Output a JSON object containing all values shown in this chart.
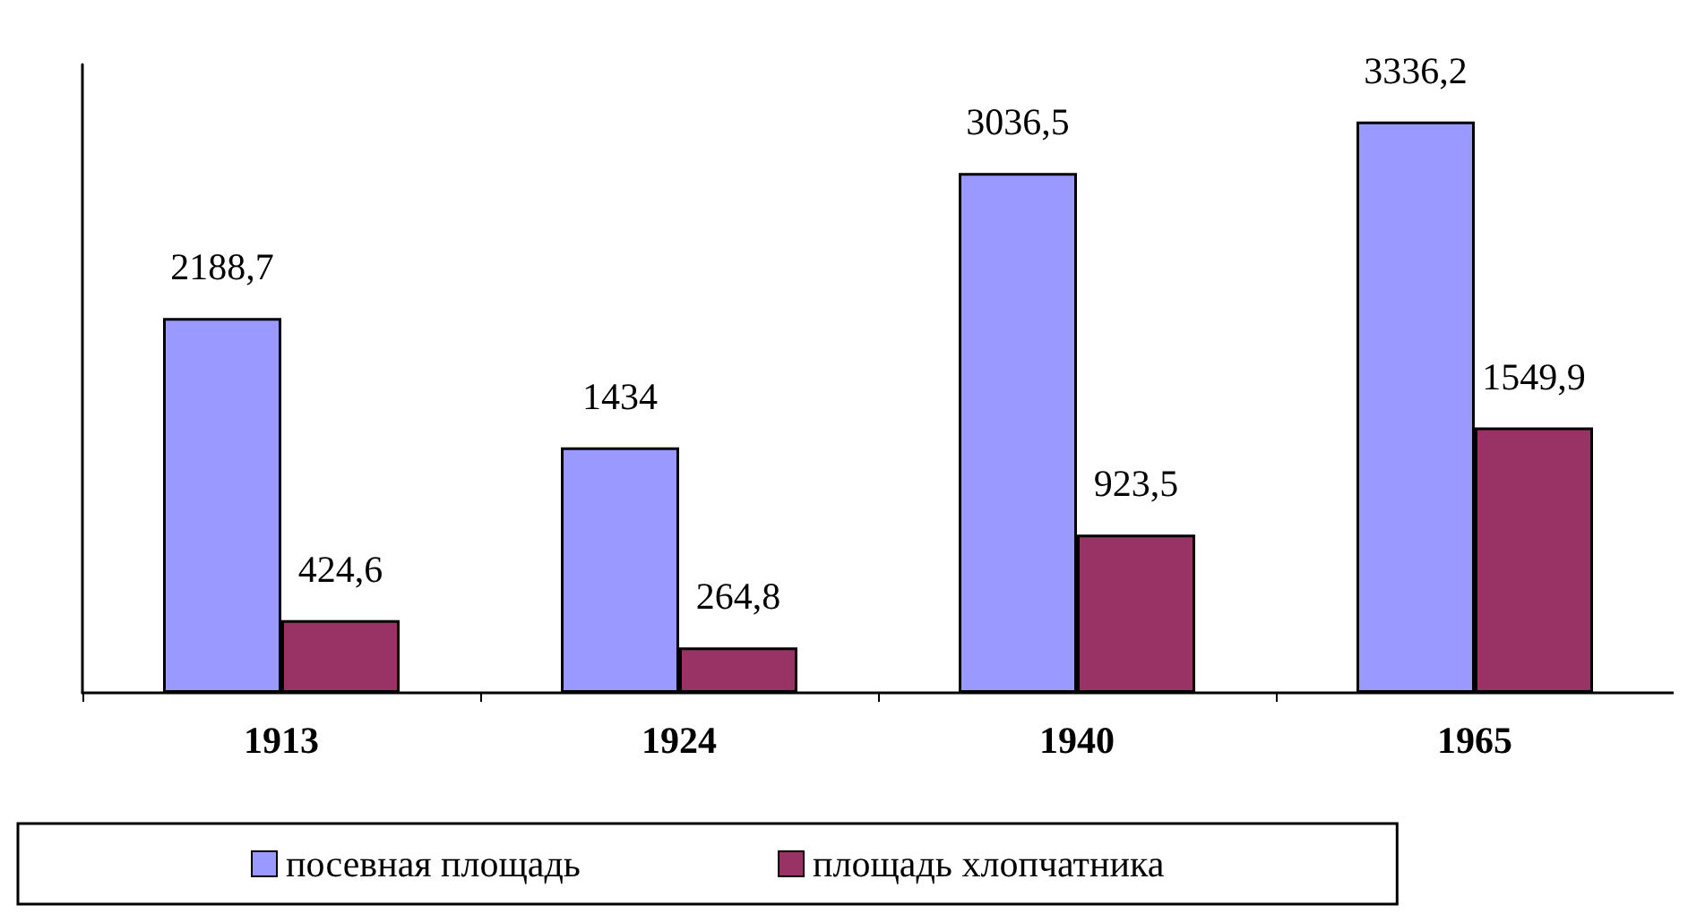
{
  "chart_data": {
    "type": "bar",
    "categories": [
      "1913",
      "1924",
      "1940",
      "1965"
    ],
    "series": [
      {
        "name": "посевная площадь",
        "color": "#9999ff",
        "values": [
          2188.7,
          1434,
          3036.5,
          3336.2
        ],
        "value_labels": [
          "2188,7",
          "1434",
          "3036,5",
          "3336,2"
        ]
      },
      {
        "name": "площадь хлопчатника",
        "color": "#993366",
        "values": [
          424.6,
          264.8,
          923.5,
          1549.9
        ],
        "value_labels": [
          "424,6",
          "264,8",
          "923,5",
          "1549,9"
        ]
      }
    ],
    "legend": "bottom",
    "grid": false
  }
}
